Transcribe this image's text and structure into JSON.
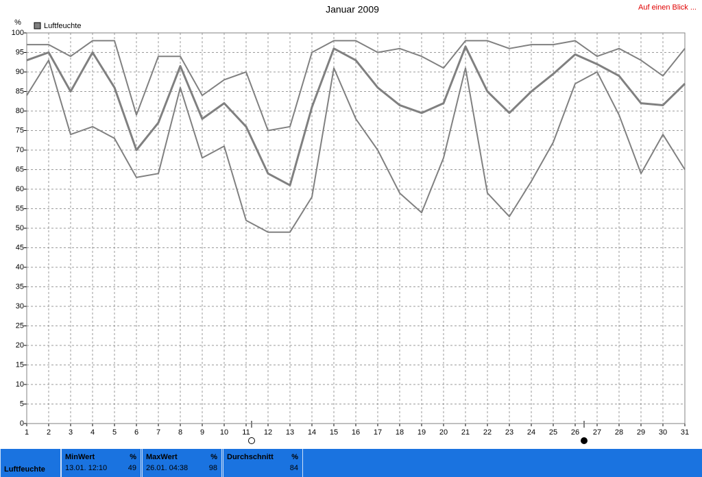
{
  "link": "Auf einen Blick ...",
  "chart_data": {
    "type": "line",
    "title": "Januar 2009",
    "y_unit": "%",
    "x": [
      1,
      2,
      3,
      4,
      5,
      6,
      7,
      8,
      9,
      10,
      11,
      12,
      13,
      14,
      15,
      16,
      17,
      18,
      19,
      20,
      21,
      22,
      23,
      24,
      25,
      26,
      27,
      28,
      29,
      30,
      31
    ],
    "xlim": [
      1,
      31
    ],
    "xticks": [
      1,
      2,
      3,
      4,
      5,
      6,
      7,
      8,
      9,
      10,
      11,
      12,
      13,
      14,
      15,
      16,
      17,
      18,
      19,
      20,
      21,
      22,
      23,
      24,
      25,
      26,
      27,
      28,
      29,
      30,
      31
    ],
    "ylim": [
      0,
      100
    ],
    "yticks": [
      0,
      5,
      10,
      15,
      20,
      25,
      30,
      35,
      40,
      45,
      50,
      55,
      60,
      65,
      70,
      75,
      80,
      85,
      90,
      95,
      100
    ],
    "grid": true,
    "legend": "top-left",
    "series": [
      {
        "name": "Luftfeuchte",
        "color": "#808080",
        "values": [
          93,
          95,
          85,
          95,
          86,
          70,
          77,
          91.5,
          78,
          82,
          76,
          64,
          61,
          81,
          96,
          93,
          86,
          81.5,
          79.5,
          82,
          96.5,
          85,
          79.5,
          85,
          89.5,
          94.5,
          92,
          89,
          82,
          81.5,
          87
        ]
      },
      {
        "color": "#808080",
        "values": [
          97,
          97,
          94,
          98,
          98,
          79,
          94,
          94,
          84,
          88,
          90,
          75,
          76,
          95,
          98,
          98,
          95,
          96,
          94,
          91,
          98,
          98,
          96,
          97,
          97,
          98,
          94,
          96,
          93,
          89,
          96
        ]
      },
      {
        "color": "#808080",
        "values": [
          84,
          93,
          74,
          76,
          73,
          63,
          64,
          86,
          68,
          71,
          52,
          49,
          49,
          58,
          91,
          78,
          70,
          59,
          54,
          68,
          91,
          59,
          53,
          62,
          72,
          87,
          90,
          79,
          64,
          74,
          65
        ]
      }
    ]
  },
  "summary": {
    "label": "Luftfeuchte",
    "columns": [
      {
        "header": "MinWert",
        "unit": "%",
        "time": "13.01. 12:10",
        "value": 49
      },
      {
        "header": "MaxWert",
        "unit": "%",
        "time": "26.01. 04:38",
        "value": 98
      },
      {
        "header": "Durchschnitt",
        "unit": "%",
        "value": 84
      }
    ]
  }
}
